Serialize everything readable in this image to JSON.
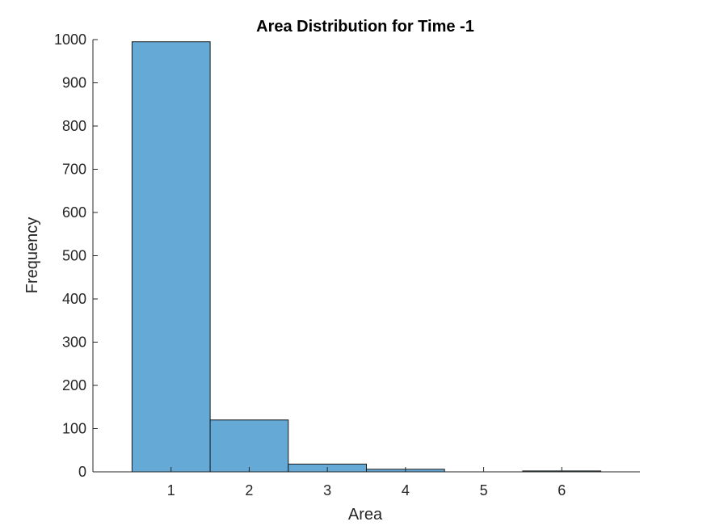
{
  "chart_data": {
    "type": "bar",
    "title": "Area Distribution for Time -1",
    "xlabel": "Area",
    "ylabel": "Frequency",
    "categories": [
      "1",
      "2",
      "3",
      "4",
      "5",
      "6"
    ],
    "values": [
      995,
      120,
      18,
      6,
      0,
      2
    ],
    "ylim": [
      0,
      1000
    ],
    "xlim": [
      0,
      7
    ],
    "yticks": [
      0,
      100,
      200,
      300,
      400,
      500,
      600,
      700,
      800,
      900,
      1000
    ],
    "xticks": [
      1,
      2,
      3,
      4,
      5,
      6
    ],
    "grid": false,
    "bar_color": "#65a9d7",
    "edge_color": "#1a1a1a"
  }
}
